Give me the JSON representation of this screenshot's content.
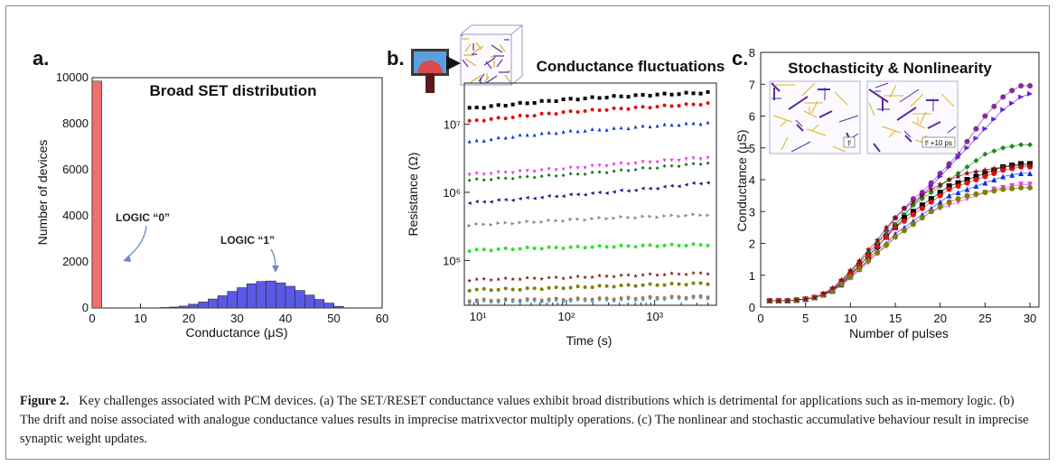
{
  "caption": {
    "label": "Figure 2.",
    "text": "Key challenges associated with PCM devices. (a) The SET/RESET conductance values exhibit broad distributions which is detrimental for applications such as in-memory logic. (b) The drift and noise associated with analogue conductance values results in imprecise matrixvector multiply operations. (c) The nonlinear and stochastic accumulative behaviour result in imprecise synaptic weight updates."
  },
  "colors": {
    "red_bar": "#f0706c",
    "blue_bar": "#5a5ae6"
  },
  "chart_data": [
    {
      "panel": "a.",
      "type": "bar",
      "title": "Broad SET distribution",
      "xlabel": "Conductance (μS)",
      "ylabel": "Number of devices",
      "xlim": [
        0,
        60
      ],
      "ylim": [
        0,
        10000
      ],
      "xticks": [
        0,
        10,
        20,
        30,
        40,
        50,
        60
      ],
      "yticks": [
        0,
        2000,
        4000,
        6000,
        8000,
        10000
      ],
      "annotations": [
        "LOGIC “0”",
        "LOGIC “1”"
      ],
      "series": [
        {
          "bins": [
            [
              0,
              2,
              9850
            ]
          ]
        },
        {
          "bins": [
            [
              14,
              16,
              20
            ],
            [
              16,
              18,
              40
            ],
            [
              18,
              20,
              80
            ],
            [
              20,
              22,
              160
            ],
            [
              22,
              24,
              260
            ],
            [
              24,
              26,
              390
            ],
            [
              26,
              28,
              530
            ],
            [
              28,
              30,
              720
            ],
            [
              30,
              32,
              880
            ],
            [
              32,
              34,
              1050
            ],
            [
              34,
              36,
              1150
            ],
            [
              36,
              38,
              1170
            ],
            [
              38,
              40,
              1090
            ],
            [
              40,
              42,
              940
            ],
            [
              42,
              44,
              760
            ],
            [
              44,
              46,
              560
            ],
            [
              46,
              48,
              370
            ],
            [
              48,
              50,
              210
            ],
            [
              50,
              52,
              70
            ]
          ]
        }
      ]
    },
    {
      "panel": "b.",
      "type": "scatter",
      "title": "Conductance fluctuations",
      "xlabel": "Time (s)",
      "ylabel": "Resistance (Ω)",
      "xscale": "log",
      "yscale": "log",
      "xlim": [
        7,
        5000
      ],
      "ylim": [
        22000,
        40000000
      ],
      "xticks": [
        "10¹",
        "10²",
        "10³"
      ],
      "yticks": [
        "10⁵",
        "10⁶",
        "10⁷"
      ],
      "series": [
        {
          "color": "#000000",
          "marker": "square",
          "x": [
            8,
            30,
            100,
            300,
            1000,
            4000
          ],
          "y": [
            17000000,
            20000000,
            23000000,
            25000000,
            27000000,
            29000000
          ]
        },
        {
          "color": "#e01010",
          "marker": "circle",
          "x": [
            8,
            30,
            100,
            300,
            1000,
            4000
          ],
          "y": [
            11000000,
            13000000,
            15000000,
            16500000,
            18000000,
            20000000
          ]
        },
        {
          "color": "#1030e0",
          "marker": "triangle",
          "x": [
            8,
            30,
            100,
            300,
            1000,
            4000
          ],
          "y": [
            5500000,
            6800000,
            7800000,
            8500000,
            9500000,
            10500000
          ]
        },
        {
          "color": "#e040e0",
          "marker": "triangle-down",
          "x": [
            8,
            30,
            100,
            300,
            1000,
            4000
          ],
          "y": [
            1800000,
            2000000,
            2200000,
            2500000,
            2800000,
            3200000
          ]
        },
        {
          "color": "#1a7a1a",
          "marker": "diamond",
          "x": [
            8,
            30,
            100,
            300,
            1000,
            4000
          ],
          "y": [
            1500000,
            1650000,
            1800000,
            2000000,
            2300000,
            2700000
          ]
        },
        {
          "color": "#0a1a80",
          "marker": "triangle-left",
          "x": [
            8,
            30,
            100,
            300,
            1000,
            4000
          ],
          "y": [
            700000,
            800000,
            900000,
            1000000,
            1150000,
            1400000
          ]
        },
        {
          "color": "#888888",
          "marker": "triangle-right",
          "x": [
            8,
            30,
            100,
            300,
            1000,
            4000
          ],
          "y": [
            330000,
            360000,
            390000,
            420000,
            440000,
            470000
          ]
        },
        {
          "color": "#30e030",
          "marker": "circle",
          "x": [
            8,
            30,
            100,
            300,
            1000,
            4000
          ],
          "y": [
            140000,
            150000,
            155000,
            160000,
            165000,
            170000
          ]
        },
        {
          "color": "#801010",
          "marker": "star",
          "x": [
            8,
            30,
            100,
            300,
            1000,
            4000
          ],
          "y": [
            52000,
            54000,
            56000,
            59000,
            62000,
            65000
          ]
        },
        {
          "color": "#808000",
          "marker": "circle",
          "x": [
            8,
            30,
            100,
            300,
            1000,
            4000
          ],
          "y": [
            37000,
            38000,
            40000,
            42000,
            44000,
            46000
          ]
        },
        {
          "color": "#c07030",
          "marker": "circle",
          "x": [
            8,
            30,
            100,
            300,
            1000,
            4000
          ],
          "y": [
            26000,
            26500,
            27000,
            27500,
            28500,
            29500
          ]
        },
        {
          "color": "#40a0e0",
          "marker": "diamond",
          "x": [
            8,
            30,
            100,
            300,
            1000,
            4000
          ],
          "y": [
            24500,
            25000,
            25500,
            26000,
            27000,
            28000
          ]
        }
      ]
    },
    {
      "panel": "c.",
      "type": "line",
      "title": "Stochasticity & Nonlinearity",
      "xlabel": "Number of pulses",
      "ylabel": "Conductance (μS)",
      "xlim": [
        0,
        31
      ],
      "ylim": [
        0,
        8
      ],
      "xticks": [
        0,
        5,
        10,
        15,
        20,
        25,
        30
      ],
      "yticks": [
        0,
        1,
        2,
        3,
        4,
        5,
        6,
        7,
        8
      ],
      "inset_labels": [
        "tᴵ",
        "tᴵ +10 ps"
      ],
      "x": [
        1,
        2,
        3,
        4,
        5,
        6,
        7,
        8,
        9,
        10,
        11,
        12,
        13,
        14,
        15,
        16,
        17,
        18,
        19,
        20,
        21,
        22,
        23,
        24,
        25,
        26,
        27,
        28,
        29,
        30
      ],
      "series": [
        {
          "color": "#8a2a9a",
          "marker": "circle",
          "values": [
            0.2,
            0.2,
            0.2,
            0.22,
            0.25,
            0.3,
            0.4,
            0.55,
            0.8,
            1.1,
            1.4,
            1.7,
            2.0,
            2.4,
            2.8,
            3.1,
            3.4,
            3.6,
            3.9,
            4.2,
            4.5,
            4.8,
            5.2,
            5.6,
            6.0,
            6.3,
            6.6,
            6.8,
            6.95,
            6.95
          ]
        },
        {
          "color": "#6020e0",
          "marker": "triangle-right",
          "values": [
            0.2,
            0.2,
            0.2,
            0.22,
            0.25,
            0.3,
            0.38,
            0.5,
            0.75,
            1.0,
            1.3,
            1.6,
            1.9,
            2.2,
            2.6,
            2.9,
            3.2,
            3.5,
            3.8,
            4.1,
            4.4,
            4.7,
            5.0,
            5.3,
            5.6,
            5.9,
            6.2,
            6.4,
            6.6,
            6.7
          ]
        },
        {
          "color": "#1a8a1a",
          "marker": "diamond",
          "values": [
            0.2,
            0.2,
            0.2,
            0.22,
            0.25,
            0.3,
            0.4,
            0.55,
            0.8,
            1.1,
            1.4,
            1.7,
            2.0,
            2.3,
            2.6,
            2.9,
            3.2,
            3.4,
            3.6,
            3.8,
            4.0,
            4.2,
            4.4,
            4.6,
            4.8,
            4.9,
            5.0,
            5.05,
            5.1,
            5.1
          ]
        },
        {
          "color": "#000000",
          "marker": "square",
          "values": [
            0.2,
            0.2,
            0.2,
            0.22,
            0.25,
            0.3,
            0.4,
            0.52,
            0.75,
            1.0,
            1.3,
            1.6,
            1.9,
            2.2,
            2.5,
            2.8,
            3.0,
            3.2,
            3.4,
            3.6,
            3.8,
            3.9,
            4.0,
            4.1,
            4.2,
            4.3,
            4.4,
            4.45,
            4.5,
            4.5
          ]
        },
        {
          "color": "#e01010",
          "marker": "circle",
          "values": [
            0.2,
            0.2,
            0.2,
            0.22,
            0.25,
            0.3,
            0.4,
            0.55,
            0.8,
            1.05,
            1.3,
            1.6,
            1.9,
            2.2,
            2.5,
            2.7,
            2.9,
            3.1,
            3.3,
            3.5,
            3.7,
            3.8,
            3.9,
            4.0,
            4.1,
            4.2,
            4.3,
            4.35,
            4.4,
            4.4
          ]
        },
        {
          "color": "#1030e0",
          "marker": "triangle",
          "values": [
            0.2,
            0.2,
            0.2,
            0.22,
            0.25,
            0.3,
            0.38,
            0.5,
            0.7,
            0.95,
            1.2,
            1.5,
            1.8,
            2.0,
            2.3,
            2.5,
            2.7,
            2.9,
            3.1,
            3.3,
            3.5,
            3.6,
            3.7,
            3.8,
            3.9,
            4.0,
            4.1,
            4.15,
            4.2,
            4.2
          ]
        },
        {
          "color": "#e040e0",
          "marker": "triangle-down",
          "values": [
            0.2,
            0.2,
            0.2,
            0.22,
            0.25,
            0.3,
            0.38,
            0.5,
            0.7,
            0.9,
            1.15,
            1.4,
            1.7,
            1.9,
            2.2,
            2.4,
            2.6,
            2.8,
            3.0,
            3.1,
            3.2,
            3.3,
            3.4,
            3.5,
            3.6,
            3.7,
            3.75,
            3.8,
            3.85,
            3.85
          ]
        },
        {
          "color": "#808000",
          "marker": "circle",
          "values": [
            0.2,
            0.2,
            0.2,
            0.22,
            0.25,
            0.3,
            0.38,
            0.5,
            0.72,
            0.95,
            1.2,
            1.45,
            1.7,
            1.95,
            2.2,
            2.4,
            2.6,
            2.8,
            3.0,
            3.15,
            3.3,
            3.4,
            3.5,
            3.55,
            3.6,
            3.65,
            3.7,
            3.72,
            3.75,
            3.75
          ]
        },
        {
          "color": "#801010",
          "marker": "star",
          "values": [
            0.2,
            0.2,
            0.2,
            0.22,
            0.25,
            0.3,
            0.42,
            0.6,
            0.85,
            1.15,
            1.45,
            1.8,
            2.1,
            2.5,
            2.8,
            3.1,
            3.3,
            3.5,
            3.7,
            3.85,
            4.0,
            4.1,
            4.2,
            4.25,
            4.3,
            4.35,
            4.4,
            4.42,
            4.45,
            4.45
          ]
        }
      ]
    }
  ]
}
